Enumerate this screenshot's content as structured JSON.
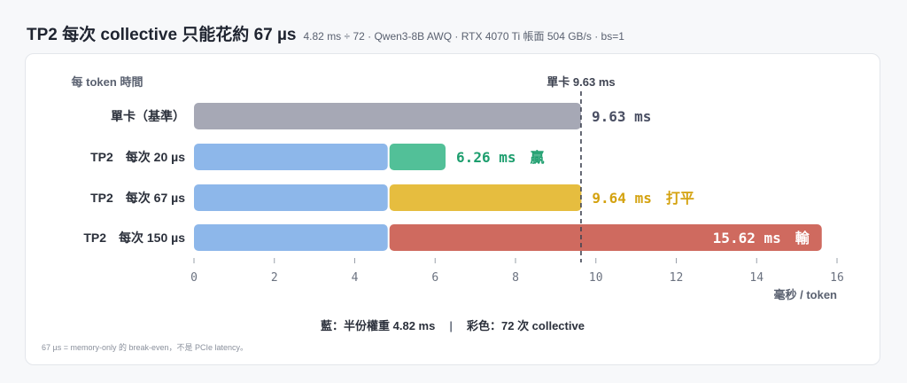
{
  "header": {
    "title": "TP2 每次 collective 只能花約 67 µs",
    "subtitle": "4.82 ms ÷ 72 · Qwen3-8B AWQ · RTX 4070 Ti 帳面 504 GB/s · bs=1"
  },
  "chart_data": {
    "type": "bar",
    "orientation": "horizontal",
    "stacked": true,
    "ylabel": "每 token 時間",
    "xlabel": "毫秒 / token",
    "xlim": [
      0,
      16
    ],
    "xticks": [
      "0",
      "2",
      "4",
      "6",
      "8",
      "10",
      "12",
      "14",
      "16"
    ],
    "grid": false,
    "reference_line": {
      "value": 9.63,
      "label": "單卡 9.63 ms"
    },
    "rows": [
      {
        "label": "單卡（基準）",
        "segments": [
          {
            "value": 9.63,
            "color": "#a6a8b5"
          }
        ],
        "value_label": "9.63 ms",
        "value_color": "#4a4f63",
        "label_inside": false
      },
      {
        "label": "TP2　每次 20 µs",
        "segments": [
          {
            "value": 4.82,
            "color": "#8db7ea"
          },
          {
            "value": 1.44,
            "color": "#52c098"
          }
        ],
        "value_label": "6.26 ms　贏",
        "value_color": "#1d9e6e",
        "label_inside": false
      },
      {
        "label": "TP2　每次 67 µs",
        "segments": [
          {
            "value": 4.82,
            "color": "#8db7ea"
          },
          {
            "value": 4.82,
            "color": "#e6bd3f"
          }
        ],
        "value_label": "9.64 ms　打平",
        "value_color": "#d4a20f",
        "label_inside": false
      },
      {
        "label": "TP2　每次 150 µs",
        "segments": [
          {
            "value": 4.82,
            "color": "#8db7ea"
          },
          {
            "value": 10.8,
            "color": "#cf6a5f"
          }
        ],
        "value_label": "15.62 ms　輸",
        "value_color": "#ffffff",
        "label_inside": true
      }
    ]
  },
  "legend": {
    "blue": "藍：半份權重 4.82 ms",
    "separator": "|",
    "colored": "彩色：72 次 collective"
  },
  "footnote": "67 µs = memory-only 的 break-even，不是 PCIe latency。"
}
